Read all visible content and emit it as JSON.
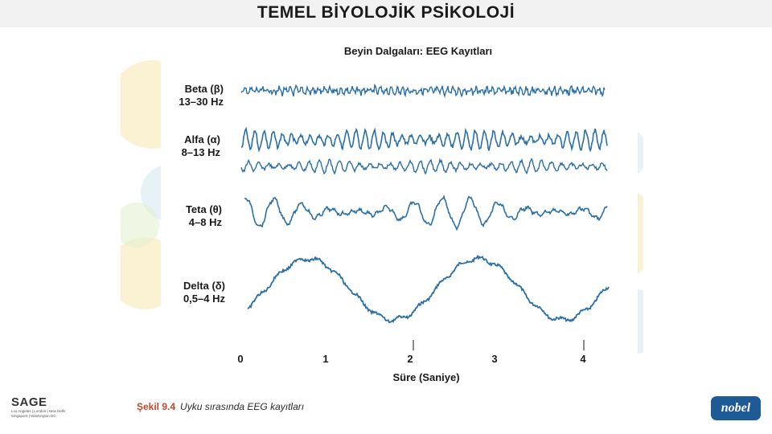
{
  "header": {
    "title": "TEMEL BİYOLOJİK PSİKOLOJİ"
  },
  "figure": {
    "title": "Beyin Dalgaları: EEG Kayıtları",
    "waves": [
      {
        "name": "Beta (β)",
        "range": "13–30 Hz"
      },
      {
        "name": "Alfa (α)",
        "range": "8–13 Hz"
      },
      {
        "name": "Teta (θ)",
        "range": "4–8 Hz"
      },
      {
        "name": "Delta (δ)",
        "range": "0,5–4 Hz"
      }
    ],
    "ticks": [
      "0",
      "1",
      "2",
      "3",
      "4"
    ],
    "xlabel": "Süre (Saniye)",
    "wave_color": "#2a6fa8"
  },
  "caption": {
    "number": "Şekil 9.4",
    "text": "Uyku sırasında EEG kayıtları"
  },
  "logos": {
    "left": "SAGE",
    "left_sub": "Los Angeles | London | New Delhi Singapore | Washington DC",
    "right": "nobel"
  }
}
